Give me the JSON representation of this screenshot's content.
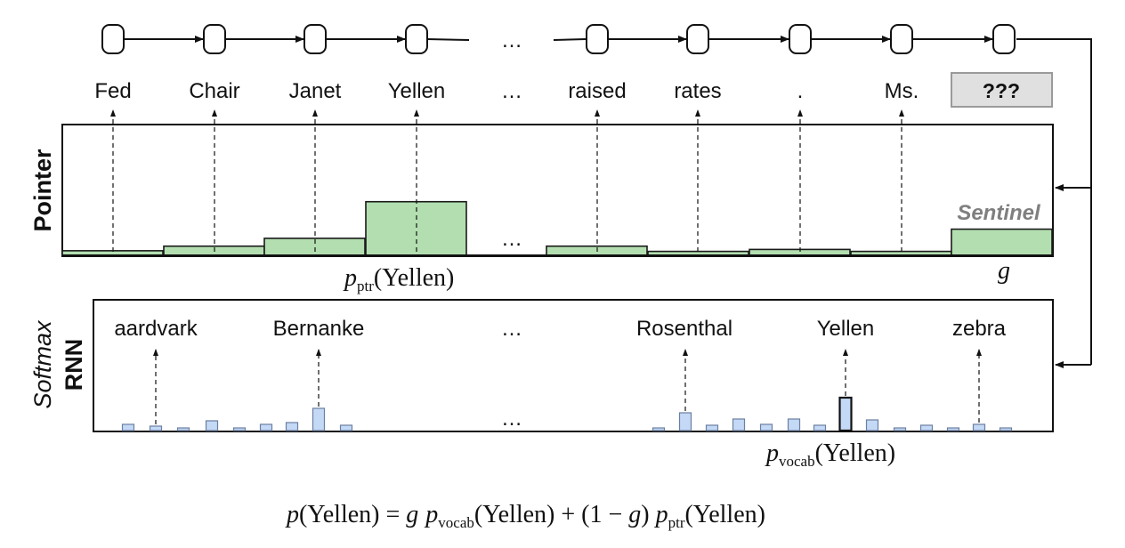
{
  "sequence": {
    "tokens": [
      "Fed",
      "Chair",
      "Janet",
      "Yellen",
      "…",
      "raised",
      "rates",
      ".",
      "Ms."
    ],
    "query": "???"
  },
  "pointer": {
    "section_label": "Pointer",
    "sentinel_label": "Sentinel",
    "gate_label": "g",
    "bars": [
      {
        "token": "Fed",
        "prob": 0.035
      },
      {
        "token": "Chair",
        "prob": 0.07
      },
      {
        "token": "Janet",
        "prob": 0.13
      },
      {
        "token": "Yellen",
        "prob": 0.41
      },
      {
        "token": "raised",
        "prob": 0.07
      },
      {
        "token": "rates",
        "prob": 0.03
      },
      {
        "token": ".",
        "prob": 0.045
      },
      {
        "token": "Ms.",
        "prob": 0.03
      },
      {
        "token": "Sentinel",
        "prob": 0.2
      }
    ],
    "ellipsis": "…",
    "annotation": {
      "p": "p",
      "sub": "ptr",
      "arg": "(Yellen)"
    }
  },
  "softmax": {
    "section_label_top": "RNN",
    "section_label_bottom": "Softmax",
    "words": [
      "aardvark",
      "Bernanke",
      "…",
      "Rosenthal",
      "Yellen",
      "zebra"
    ],
    "ellipsis": "…",
    "bars_left": [
      0.07,
      0.05,
      0.03,
      0.11,
      0.03,
      0.07,
      0.09,
      0.25,
      0.06
    ],
    "bars_right": [
      0.03,
      0.2,
      0.06,
      0.13,
      0.07,
      0.13,
      0.06,
      0.37,
      0.12,
      0.03,
      0.06,
      0.03,
      0.07,
      0.03
    ],
    "highlighted_right_index": 7,
    "arrow_targets": {
      "aardvark": [
        "left",
        1
      ],
      "Bernanke": [
        "left",
        7
      ],
      "Rosenthal": [
        "right",
        1
      ],
      "Yellen": [
        "right",
        7
      ],
      "zebra": [
        "right",
        12
      ]
    },
    "annotation": {
      "p": "p",
      "sub": "vocab",
      "arg": "(Yellen)"
    }
  },
  "equation": {
    "lhs_p": "p",
    "lhs_arg": "(Yellen) = ",
    "g1": "g",
    "p1": "p",
    "sub1": "vocab",
    "arg1": "(Yellen) + (1 − ",
    "g2": "g",
    "close2": ") ",
    "p2": "p",
    "sub2": "ptr",
    "arg2": "(Yellen)"
  },
  "colors": {
    "pointer_fill": "#b3dfb0",
    "pointer_stroke": "#1a1a1a",
    "softmax_fill": "#c4d9f5",
    "softmax_stroke": "#6c7fa0",
    "query_box_fill": "#e0e0e0",
    "query_box_stroke": "#9a9a9a",
    "sentinel_text": "#7f7f7f"
  }
}
